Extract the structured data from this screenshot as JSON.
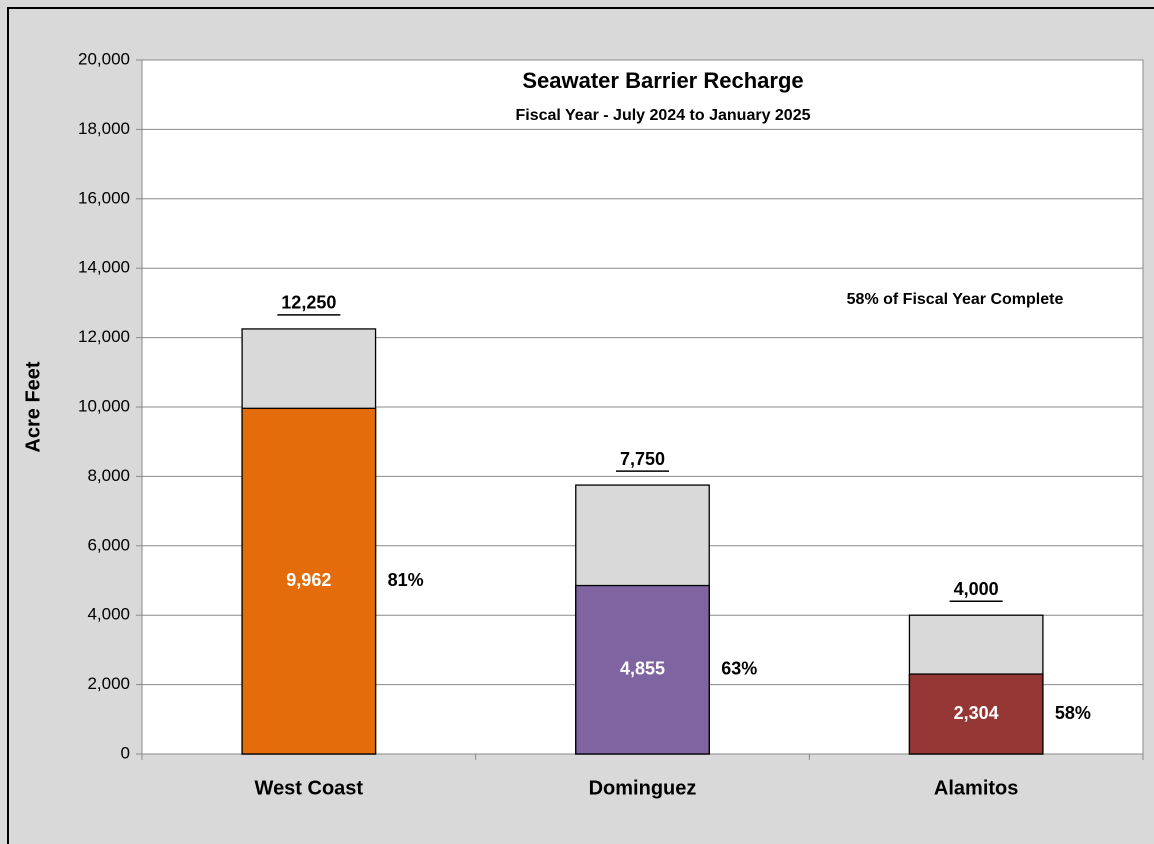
{
  "chart_data": {
    "type": "bar",
    "title": "Seawater Barrier Recharge",
    "subtitle": "Fiscal Year - July 2024 to January 2025",
    "annotation": "58% of Fiscal Year Complete",
    "y_label": "Acre Feet",
    "categories": [
      "West Coast",
      "Dominguez",
      "Alamitos"
    ],
    "series": [
      {
        "color": "#d9d9d9",
        "values": [
          12250,
          7750,
          4000
        ],
        "value_labels": [
          "12,250",
          "7,750",
          "4,000"
        ]
      },
      {
        "colors": [
          "#e46c0a",
          "#8064a2",
          "#953735"
        ],
        "values": [
          9962,
          4855,
          2304
        ],
        "value_labels": [
          "9,962",
          "4,855",
          "2,304"
        ]
      }
    ],
    "percent_labels": [
      "81%",
      "63%",
      "58%"
    ],
    "ylim": [
      0,
      20000
    ],
    "yticks": [
      0,
      {
        "value": 2000,
        "label": "2,000"
      },
      {
        "value": 4000,
        "label": "4,000"
      },
      {
        "value": 6000,
        "label": "6,000"
      },
      {
        "value": 8000,
        "label": "8,000"
      },
      {
        "value": 10000,
        "label": "10,000"
      },
      {
        "value": 12000,
        "label": "12,000"
      },
      {
        "value": 14000,
        "label": "14,000"
      },
      {
        "value": 16000,
        "label": "16,000"
      },
      {
        "value": 18000,
        "label": "18,000"
      },
      {
        "value": 20000,
        "label": "20,000"
      }
    ],
    "grid": true
  }
}
